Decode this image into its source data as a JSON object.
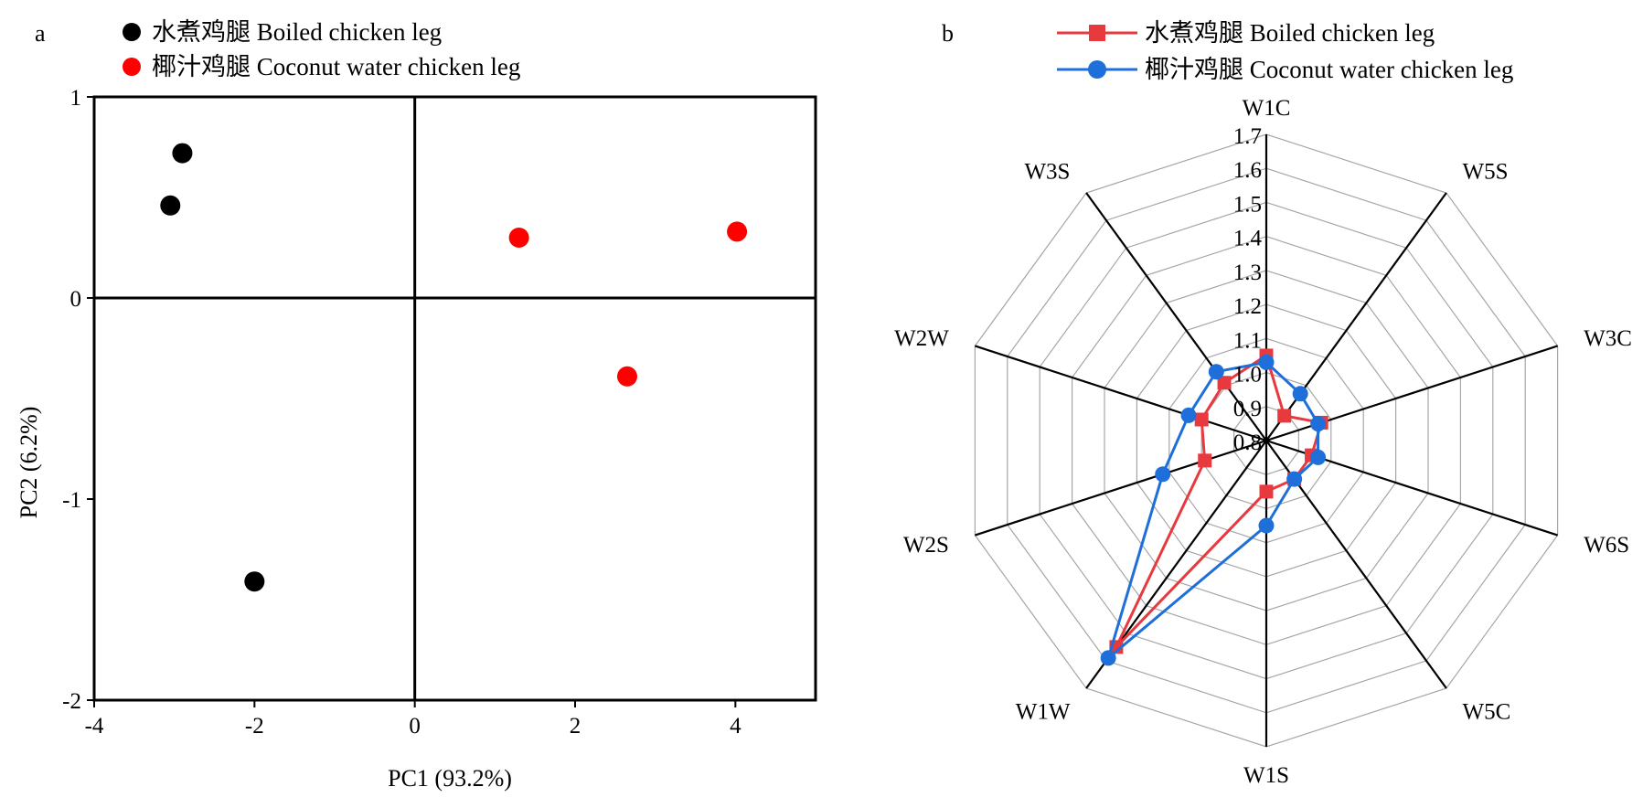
{
  "colors": {
    "pca_group1": "#000000",
    "pca_group2": "#ff0000",
    "radar_series1": "#e8393f",
    "radar_series2": "#1e6fd9",
    "radar_grid": "#a6a6a6",
    "axes": "#000000"
  },
  "chart_data": [
    {
      "panel": "a",
      "type": "scatter",
      "xlabel": "PC1 (93.2%)",
      "ylabel": "PC2 (6.2%)",
      "xlim": [
        -4,
        5
      ],
      "ylim": [
        -2,
        1
      ],
      "x_ticks": [
        "-4",
        "-2",
        "0",
        "2",
        "4"
      ],
      "y_ticks": [
        "-2",
        "-1",
        "0",
        "1"
      ],
      "grid": false,
      "zero_lines": true,
      "legend_position": "top-left",
      "series": [
        {
          "name": "水煮鸡腿 Boiled chicken leg",
          "marker": "circle",
          "points": [
            [
              -2.9,
              0.72
            ],
            [
              -3.05,
              0.46
            ],
            [
              -2.0,
              -1.41
            ]
          ]
        },
        {
          "name": "椰汁鸡腿 Coconut water chicken leg",
          "marker": "circle",
          "points": [
            [
              1.3,
              0.3
            ],
            [
              4.02,
              0.33
            ],
            [
              2.65,
              -0.39
            ]
          ]
        }
      ]
    },
    {
      "panel": "b",
      "type": "radar",
      "axes": [
        "W1C",
        "W5S",
        "W3C",
        "W6S",
        "W5C",
        "W1S",
        "W1W",
        "W2S",
        "W2W",
        "W3S"
      ],
      "r_range": [
        0.8,
        1.7
      ],
      "r_ticks": [
        "0.8",
        "0.9",
        "1.0",
        "1.1",
        "1.2",
        "1.3",
        "1.4",
        "1.5",
        "1.6",
        "1.7"
      ],
      "legend_position": "top",
      "series": [
        {
          "name": "水煮鸡腿 Boiled chicken leg",
          "marker": "square",
          "values": [
            1.05,
            0.89,
            0.97,
            0.94,
            0.94,
            0.95,
            1.55,
            0.99,
            1.0,
            1.01
          ]
        },
        {
          "name": "椰汁鸡腿 Coconut water chicken leg",
          "marker": "circle",
          "values": [
            1.03,
            0.97,
            0.96,
            0.96,
            0.94,
            1.05,
            1.59,
            1.12,
            1.04,
            1.05
          ]
        }
      ]
    }
  ]
}
